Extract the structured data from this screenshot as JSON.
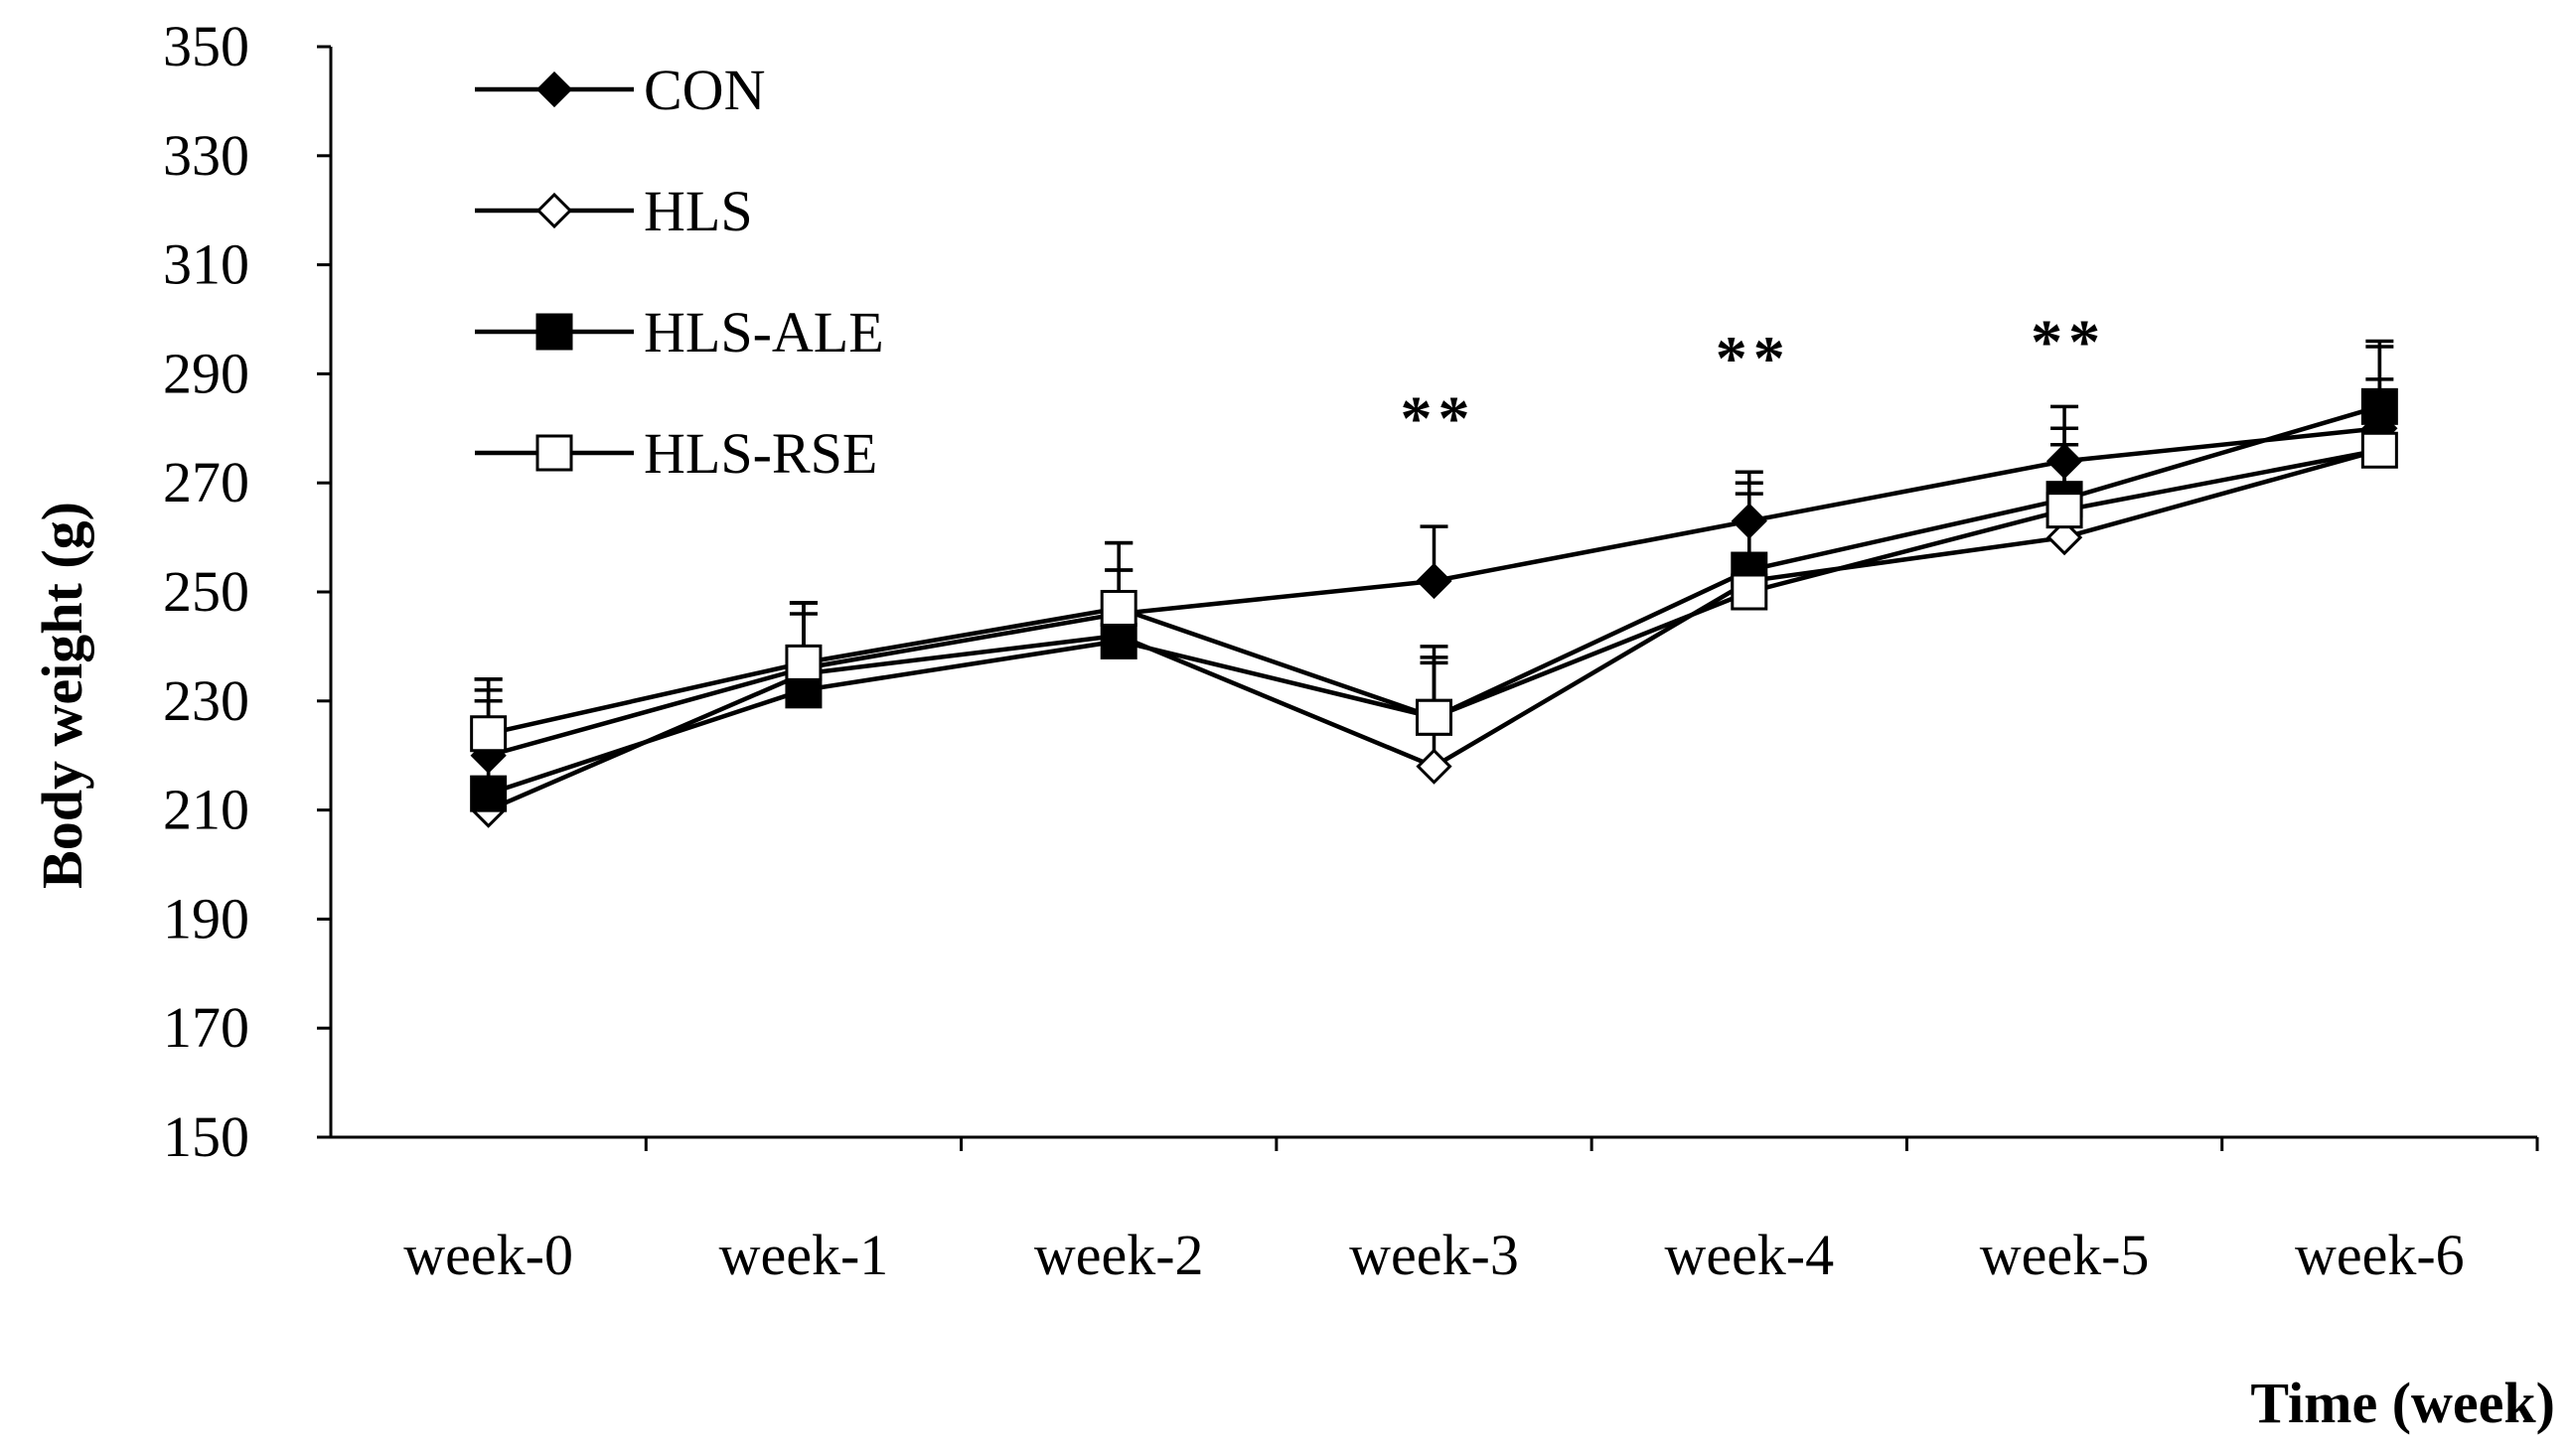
{
  "chart_data": {
    "type": "line",
    "xlabel": "Time (week)",
    "ylabel": "Body weight (g)",
    "ylim": [
      150,
      350
    ],
    "yticks": [
      150,
      170,
      190,
      210,
      230,
      250,
      270,
      290,
      310,
      330,
      350
    ],
    "categories": [
      "week-0",
      "week-1",
      "week-2",
      "week-3",
      "week-4",
      "week-5",
      "week-6"
    ],
    "grid": false,
    "legend_position": "top-left",
    "series": [
      {
        "name": "CON",
        "marker": "diamond",
        "fill": "#000000",
        "values": [
          220,
          236,
          246,
          252,
          263,
          274,
          280
        ],
        "errors": [
          14,
          12,
          13,
          10,
          9,
          10,
          16
        ]
      },
      {
        "name": "HLS",
        "marker": "diamond",
        "fill": "#ffffff",
        "values": [
          210,
          235,
          242,
          218,
          252,
          260,
          276
        ],
        "errors": [
          22,
          13,
          12,
          20,
          16,
          17,
          13
        ]
      },
      {
        "name": "HLS-ALE",
        "marker": "square",
        "fill": "#000000",
        "values": [
          213,
          232,
          241,
          227,
          254,
          267,
          284
        ],
        "errors": [
          17,
          14,
          13,
          13,
          16,
          13,
          11
        ]
      },
      {
        "name": "HLS-RSE",
        "marker": "square",
        "fill": "#ffffff",
        "values": [
          224,
          237,
          247,
          227,
          250,
          265,
          276
        ],
        "errors": [
          10,
          11,
          12,
          10,
          13,
          12,
          10
        ]
      }
    ],
    "annotations": [
      {
        "category": "week-3",
        "value": 282,
        "text": "**"
      },
      {
        "category": "week-4",
        "value": 293,
        "text": "**"
      },
      {
        "category": "week-5",
        "value": 296,
        "text": "**"
      }
    ]
  }
}
